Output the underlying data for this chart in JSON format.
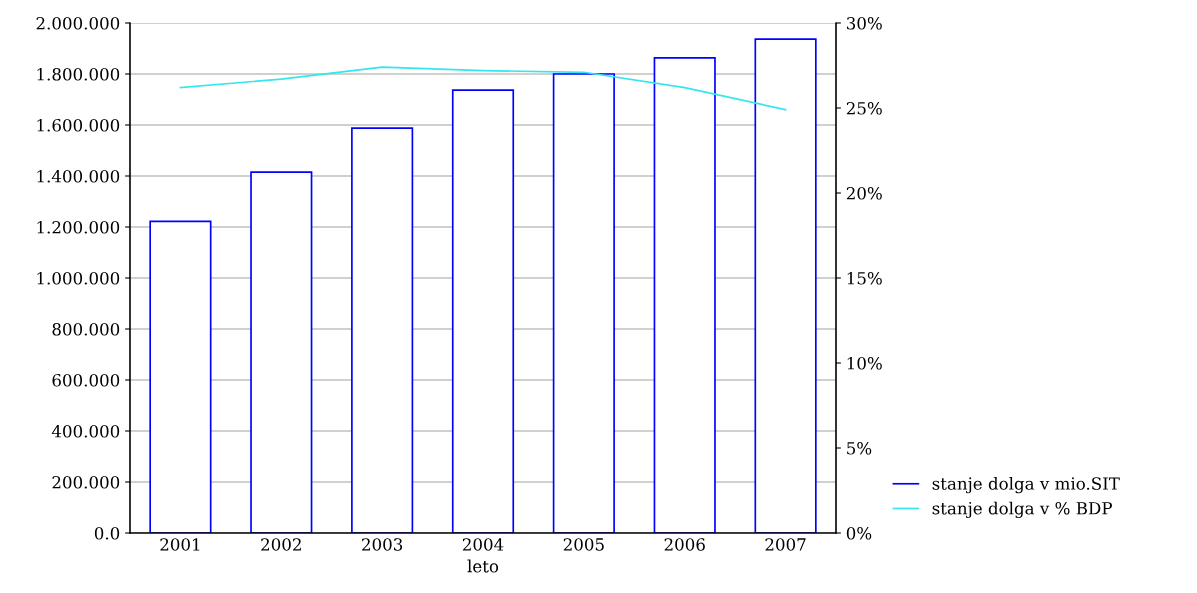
{
  "chart_data": {
    "type": "bar",
    "xlabel": "leto",
    "categories": [
      "2001",
      "2002",
      "2003",
      "2004",
      "2005",
      "2006",
      "2007"
    ],
    "series": [
      {
        "name": "stanje dolga v mio.SIT",
        "color": "#0000ff",
        "values": [
          1222000,
          1415000,
          1588000,
          1737000,
          1800000,
          1863000,
          1937000
        ]
      },
      {
        "name": "stanje dolga v % BDP",
        "type": "line",
        "axis": "y2",
        "color": "#33e6f0",
        "values": [
          26.2,
          26.7,
          27.4,
          27.2,
          27.1,
          26.2,
          24.9
        ]
      }
    ],
    "ylim": [
      0,
      2000000
    ],
    "yticks": [
      {
        "value": 0,
        "label": "0.0"
      },
      {
        "value": 200000,
        "label": "200.000"
      },
      {
        "value": 400000,
        "label": "400.000"
      },
      {
        "value": 600000,
        "label": "600.000"
      },
      {
        "value": 800000,
        "label": "800.000"
      },
      {
        "value": 1000000,
        "label": "1.000.000"
      },
      {
        "value": 1200000,
        "label": "1.200.000"
      },
      {
        "value": 1400000,
        "label": "1.400.000"
      },
      {
        "value": 1600000,
        "label": "1.600.000"
      },
      {
        "value": 1800000,
        "label": "1.800.000"
      },
      {
        "value": 2000000,
        "label": "2.000.000"
      }
    ],
    "y2lim": [
      0,
      30
    ],
    "y2ticks": [
      {
        "value": 0,
        "label": "0%"
      },
      {
        "value": 5,
        "label": "5%"
      },
      {
        "value": 10,
        "label": "10%"
      },
      {
        "value": 15,
        "label": "15%"
      },
      {
        "value": 20,
        "label": "20%"
      },
      {
        "value": 25,
        "label": "25%"
      },
      {
        "value": 30,
        "label": "30%"
      }
    ],
    "grid": "y",
    "legend": "bottom right"
  }
}
